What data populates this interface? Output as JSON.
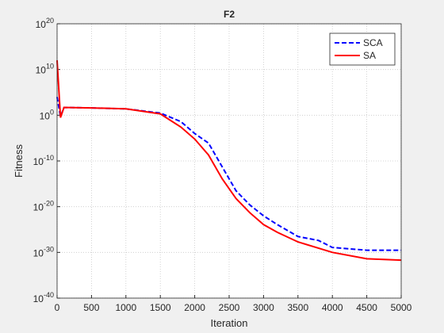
{
  "chart_data": {
    "type": "line",
    "title": "F2",
    "x_label": "Iteration",
    "y_label": "Fitness",
    "y_scale": "log",
    "grid": true,
    "legend": "northeast",
    "xlim": [
      0,
      5000
    ],
    "xticks": [
      0,
      500,
      1000,
      1500,
      2000,
      2500,
      3000,
      3500,
      4000,
      4500,
      5000
    ],
    "ylim": [
      1e-40,
      1e+20
    ],
    "yticks": [
      {
        "value": 1e-40,
        "label": "10^-40"
      },
      {
        "value": 1e-30,
        "label": "10^-30"
      },
      {
        "value": 1e-20,
        "label": "10^-20"
      },
      {
        "value": 1e-10,
        "label": "10^-10"
      },
      {
        "value": 1,
        "label": "10^0"
      },
      {
        "value": 10000000000.0,
        "label": "10^10"
      },
      {
        "value": 1e+20,
        "label": "10^20"
      }
    ],
    "series": [
      {
        "name": "SCA",
        "color": "#0000ff",
        "dash": true,
        "x": [
          0,
          50,
          100,
          500,
          1000,
          1500,
          1800,
          2000,
          2200,
          2400,
          2600,
          2800,
          3000,
          3200,
          3500,
          3800,
          4000,
          4500,
          5000
        ],
        "values": [
          10000.0,
          0.5,
          50,
          40,
          25,
          3,
          0.04,
          0.0001,
          8e-07,
          5e-12,
          3e-17,
          2.5e-20,
          1e-22,
          1.2e-24,
          3e-27,
          4e-28,
          1.2e-29,
          3e-30,
          3e-30
        ]
      },
      {
        "name": "SA",
        "color": "#ff0000",
        "dash": false,
        "x": [
          0,
          50,
          100,
          500,
          1000,
          1500,
          1800,
          2000,
          2200,
          2400,
          2600,
          2800,
          3000,
          3200,
          3500,
          4000,
          4500,
          5000
        ],
        "values": [
          1000000000000.0,
          0.3,
          50,
          40,
          25,
          2,
          0.0025,
          6e-06,
          2e-09,
          1.2e-14,
          6e-19,
          5e-22,
          1.2e-24,
          2.5e-26,
          2e-28,
          1e-30,
          4e-32,
          2e-32
        ]
      }
    ]
  }
}
